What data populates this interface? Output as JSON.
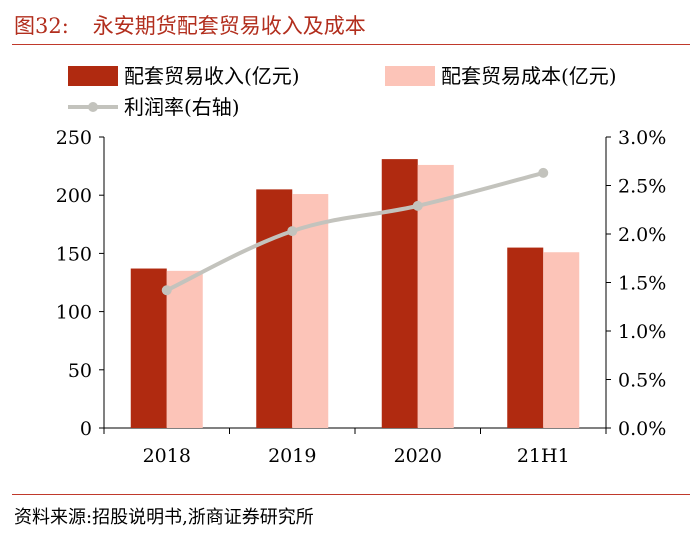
{
  "figure": {
    "number": "图32:",
    "title": "永安期货配套贸易收入及成本",
    "source": "资料来源:招股说明书,浙商证券研究所"
  },
  "colors": {
    "revenue": "#b02a10",
    "cost": "#fcc4b8",
    "margin_line": "#c3c3bd",
    "accent": "#c0392b"
  },
  "chart_data": {
    "type": "bar",
    "title": "永安期货配套贸易收入及成本",
    "categories": [
      "2018",
      "2019",
      "2020",
      "21H1"
    ],
    "series": [
      {
        "name": "配套贸易收入(亿元)",
        "kind": "bar",
        "axis": "left",
        "values": [
          137,
          205,
          231,
          155
        ]
      },
      {
        "name": "配套贸易成本(亿元)",
        "kind": "bar",
        "axis": "left",
        "values": [
          135,
          201,
          226,
          151
        ]
      },
      {
        "name": "利润率(右轴)",
        "kind": "line",
        "axis": "right",
        "values": [
          1.42,
          2.03,
          2.29,
          2.63
        ]
      }
    ],
    "left_axis": {
      "ylim": [
        0,
        250
      ],
      "ticks": [
        "0",
        "50",
        "100",
        "150",
        "200",
        "250"
      ],
      "tick_values": [
        0,
        50,
        100,
        150,
        200,
        250
      ]
    },
    "right_axis": {
      "ylim": [
        0,
        3.0
      ],
      "ticks": [
        "0.0%",
        "0.5%",
        "1.0%",
        "1.5%",
        "2.0%",
        "2.5%",
        "3.0%"
      ],
      "tick_values": [
        0,
        0.5,
        1.0,
        1.5,
        2.0,
        2.5,
        3.0
      ]
    },
    "xlabel": "",
    "ylabel": "",
    "legend_position": "top",
    "grid": false
  }
}
